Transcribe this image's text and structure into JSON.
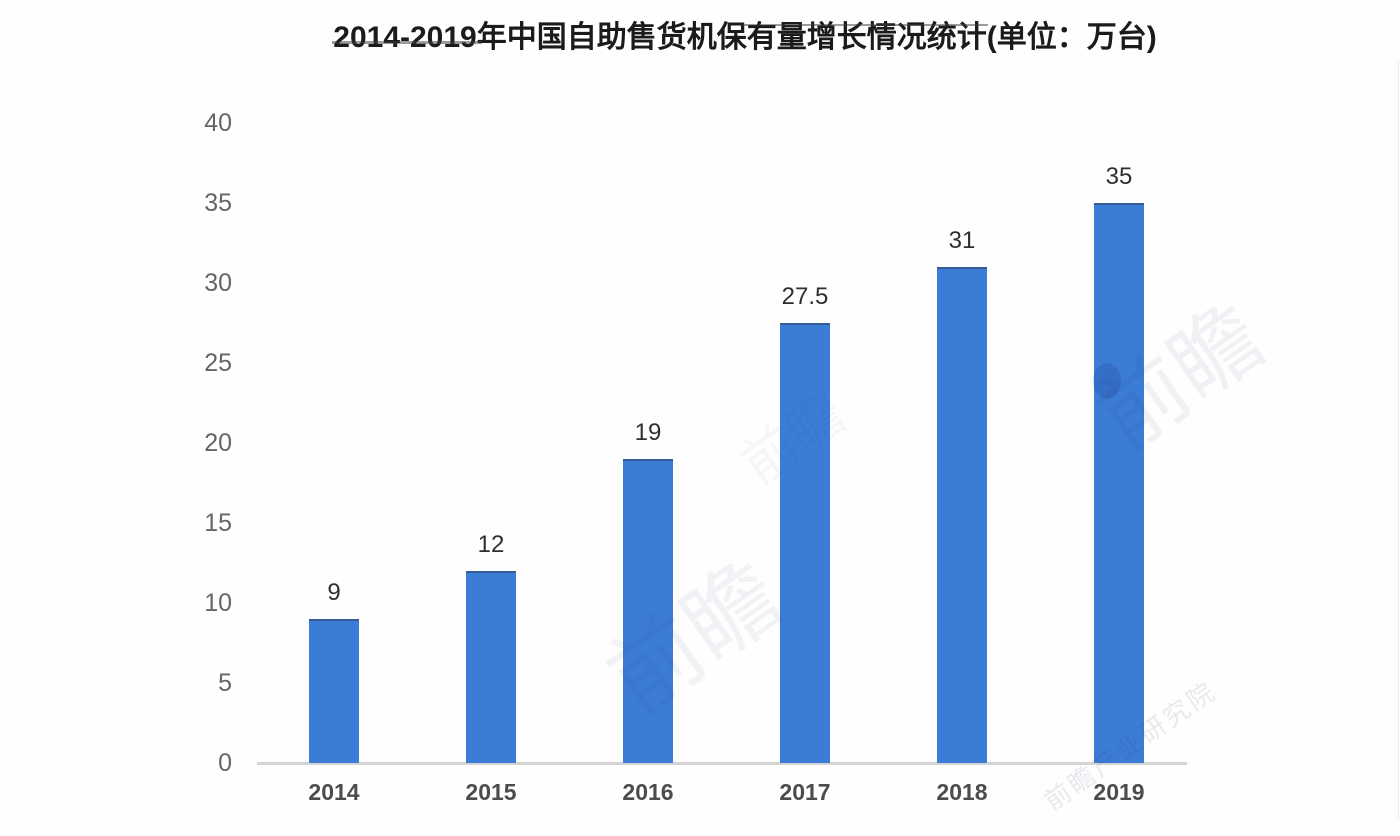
{
  "chart_data": {
    "type": "bar",
    "title": "2014-2019年中国自助售货机保有量增长情况统计(单位：万台)",
    "categories": [
      "2014",
      "2015",
      "2016",
      "2017",
      "2018",
      "2019"
    ],
    "values": [
      9,
      12,
      19,
      27.5,
      31,
      35
    ],
    "yticks": [
      0,
      5,
      10,
      15,
      20,
      25,
      30,
      35,
      40
    ],
    "ylim": [
      0,
      40
    ],
    "xlabel": "",
    "ylabel": "",
    "unit": "万台",
    "grid": false,
    "legend": false,
    "bar_color": "#3b7cd6",
    "axis_line_color": "#d4d4d4"
  },
  "watermarks": [
    {
      "text": "前瞻"
    },
    {
      "text": "前瞻"
    },
    {
      "text": "前瞻产业研究院"
    },
    {
      "text": "前瞻"
    }
  ]
}
